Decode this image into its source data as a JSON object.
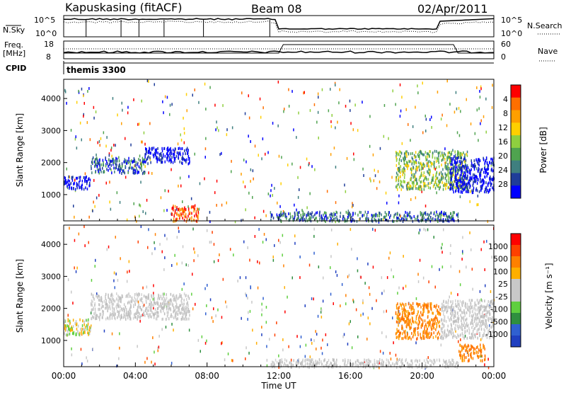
{
  "header": {
    "title": "Kapuskasing (fitACF)",
    "beam": "Beam 08",
    "date": "02/Apr/2011"
  },
  "status_panels": {
    "nsky_label": "N.Sky",
    "nsky_ticks": [
      "10^5",
      "10^0"
    ],
    "nsearch_label": "N.Search",
    "nsearch_ticks": [
      "10^5",
      "10^0"
    ],
    "freq_label_line1": "Freq.",
    "freq_label_line2": "[MHz]",
    "freq_ticks": [
      "18",
      "8"
    ],
    "nave_label": "Nave",
    "nave_ticks": [
      "60",
      "0"
    ],
    "cpid_label": "CPID",
    "cpid_value": "themis 3300"
  },
  "colors": {
    "power_scale": [
      "#0000ff",
      "#1f3d99",
      "#3f7f7f",
      "#4fa34f",
      "#8fcf3f",
      "#ffcf00",
      "#ff9f00",
      "#ff6f00",
      "#ff0000"
    ],
    "velocity_scale": [
      "#2040c0",
      "#3060d0",
      "#2f8f3f",
      "#5fcf3f",
      "#c8c8c8",
      "#c8c8c8",
      "#ffaf00",
      "#ff8000",
      "#ff4000",
      "#ff0000"
    ],
    "line": "#000000"
  },
  "chart_data": [
    {
      "type": "heatmap",
      "title": "",
      "xlabel": "Time UT",
      "ylabel": "Slant Range [km]",
      "x_ticks": [
        "00:00",
        "04:00",
        "08:00",
        "12:00",
        "16:00",
        "20:00",
        "00:00"
      ],
      "y_ticks": [
        "1000",
        "2000",
        "3000",
        "4000"
      ],
      "xlim": [
        0,
        24
      ],
      "ylim": [
        180,
        4600
      ],
      "colorbar": {
        "label": "Power [dB]",
        "ticks": [
          "4",
          "8",
          "12",
          "16",
          "20",
          "24",
          "28"
        ],
        "range": [
          0,
          30
        ]
      },
      "features": [
        {
          "start_hour": 0.0,
          "end_hour": 1.5,
          "range_start_km": 1200,
          "range_end_km": 1600,
          "level": "blue"
        },
        {
          "start_hour": 1.5,
          "end_hour": 4.5,
          "range_start_km": 1700,
          "range_end_km": 2200,
          "level": "green-blue"
        },
        {
          "start_hour": 4.5,
          "end_hour": 7.0,
          "range_start_km": 2000,
          "range_end_km": 2500,
          "level": "blue"
        },
        {
          "start_hour": 6.0,
          "end_hour": 7.5,
          "range_start_km": 200,
          "range_end_km": 700,
          "level": "orange-red"
        },
        {
          "start_hour": 11.5,
          "end_hour": 22.0,
          "range_start_km": 200,
          "range_end_km": 500,
          "level": "green-blue"
        },
        {
          "start_hour": 18.5,
          "end_hour": 22.5,
          "range_start_km": 1200,
          "range_end_km": 2400,
          "level": "green-yellow"
        },
        {
          "start_hour": 21.5,
          "end_hour": 24.0,
          "range_start_km": 1100,
          "range_end_km": 2200,
          "level": "blue"
        }
      ]
    },
    {
      "type": "heatmap",
      "title": "",
      "xlabel": "Time UT",
      "ylabel": "Slant Range [km]",
      "x_ticks": [
        "00:00",
        "04:00",
        "08:00",
        "12:00",
        "16:00",
        "20:00",
        "00:00"
      ],
      "y_ticks": [
        "1000",
        "2000",
        "3000",
        "4000"
      ],
      "xlim": [
        0,
        24
      ],
      "ylim": [
        180,
        4600
      ],
      "colorbar": {
        "label": "Velocity [m s⁻¹]",
        "ticks": [
          "1000",
          "500",
          "100",
          "25",
          "-25",
          "-100",
          "-500",
          "-1000"
        ],
        "range": [
          -1000,
          1000
        ]
      },
      "features": [
        {
          "start_hour": 0.0,
          "end_hour": 1.5,
          "range_start_km": 1200,
          "range_end_km": 1700,
          "level": "yellow-green"
        },
        {
          "start_hour": 1.5,
          "end_hour": 7.0,
          "range_start_km": 1700,
          "range_end_km": 2500,
          "level": "grey"
        },
        {
          "start_hour": 11.5,
          "end_hour": 22.0,
          "range_start_km": 200,
          "range_end_km": 450,
          "level": "grey"
        },
        {
          "start_hour": 18.5,
          "end_hour": 21.0,
          "range_start_km": 1100,
          "range_end_km": 2200,
          "level": "orange"
        },
        {
          "start_hour": 21.0,
          "end_hour": 24.0,
          "range_start_km": 1100,
          "range_end_km": 2300,
          "level": "grey"
        },
        {
          "start_hour": 22.0,
          "end_hour": 23.5,
          "range_start_km": 400,
          "range_end_km": 900,
          "level": "orange"
        }
      ]
    }
  ]
}
